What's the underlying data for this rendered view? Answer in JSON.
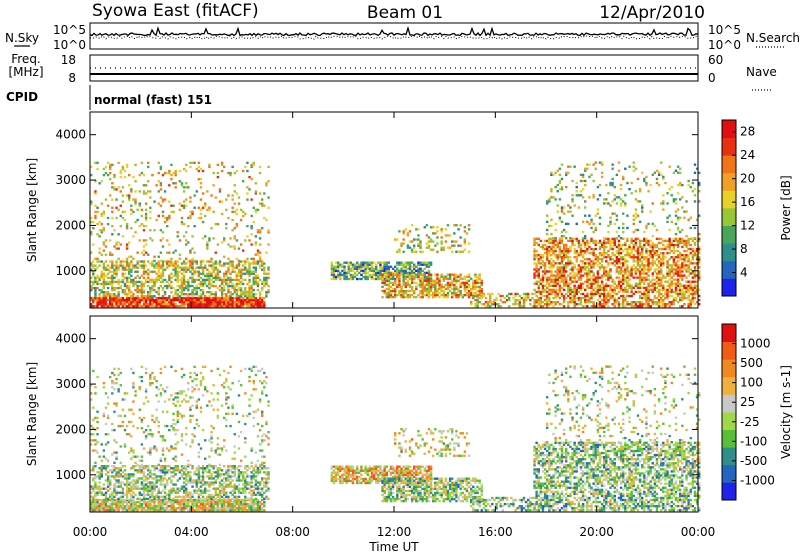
{
  "header": {
    "left": "Syowa East (fitACF)",
    "center": "Beam 01",
    "right": "12/Apr/2010"
  },
  "strips": {
    "nsky_label": "N.Sky",
    "nsearch_label": "N.Search",
    "noise_ticks": [
      "10^5",
      "10^0"
    ],
    "freq_label_1": "Freq.",
    "freq_label_2": "[MHz]",
    "freq_ticks": [
      "18",
      "8"
    ],
    "nave_label": "Nave",
    "nave_ticks": [
      "60",
      "0"
    ],
    "cpid_label": "CPID",
    "cpid_value": "normal (fast) 151"
  },
  "chart_data": [
    {
      "type": "heatmap",
      "panel": "power",
      "ylabel": "Slant Range [km]",
      "xlabel": "",
      "xlim": [
        "00:00",
        "24:00"
      ],
      "ylim": [
        180,
        4500
      ],
      "x_ticks": [
        "00:00",
        "04:00",
        "08:00",
        "12:00",
        "16:00",
        "20:00",
        "00:00"
      ],
      "y_ticks": [
        1000,
        2000,
        3000,
        4000
      ],
      "colorbar": {
        "label": "Power [dB]",
        "ticks": [
          "4",
          "8",
          "12",
          "16",
          "20",
          "24",
          "28"
        ],
        "range": [
          0,
          30
        ],
        "colors": [
          "#1f22e8",
          "#2266c0",
          "#2e8f8a",
          "#4aa55a",
          "#98c636",
          "#e8d22a",
          "#f0a024",
          "#f07418",
          "#e83010",
          "#e01010"
        ]
      },
      "regions": [
        {
          "t0": 0.0,
          "t1": 6.9,
          "r0": 200,
          "r1": 420,
          "level": 0.88,
          "density": 0.92
        },
        {
          "t0": 0.0,
          "t1": 7.0,
          "r0": 420,
          "r1": 1200,
          "level": 0.5,
          "density": 0.55
        },
        {
          "t0": 0.0,
          "t1": 7.0,
          "r0": 1200,
          "r1": 3400,
          "level": 0.55,
          "density": 0.12
        },
        {
          "t0": 9.5,
          "t1": 13.5,
          "r0": 800,
          "r1": 1200,
          "level": 0.35,
          "density": 0.75
        },
        {
          "t0": 11.5,
          "t1": 15.5,
          "r0": 400,
          "r1": 900,
          "level": 0.62,
          "density": 0.65
        },
        {
          "t0": 12.0,
          "t1": 15.0,
          "r0": 1400,
          "r1": 2000,
          "level": 0.5,
          "density": 0.22
        },
        {
          "t0": 15.0,
          "t1": 17.5,
          "r0": 200,
          "r1": 500,
          "level": 0.6,
          "density": 0.45
        },
        {
          "t0": 17.5,
          "t1": 24.0,
          "r0": 200,
          "r1": 1700,
          "level": 0.68,
          "density": 0.58
        },
        {
          "t0": 18.0,
          "t1": 24.0,
          "r0": 1700,
          "r1": 3400,
          "level": 0.45,
          "density": 0.12
        }
      ]
    },
    {
      "type": "heatmap",
      "panel": "velocity",
      "ylabel": "Slant Range [km]",
      "xlabel": "Time UT",
      "xlim": [
        "00:00",
        "24:00"
      ],
      "ylim": [
        180,
        4500
      ],
      "x_ticks": [
        "00:00",
        "04:00",
        "08:00",
        "12:00",
        "16:00",
        "20:00",
        "00:00"
      ],
      "y_ticks": [
        1000,
        2000,
        3000,
        4000
      ],
      "colorbar": {
        "label": "Velocity [m s-1]",
        "ticks": [
          "1000",
          "500",
          "100",
          "25",
          "-25",
          "-100",
          "-500",
          "-1000"
        ],
        "range": [
          -1000,
          1000
        ],
        "colors": [
          "#1f22e8",
          "#2266c0",
          "#2e8f8a",
          "#58c038",
          "#a0d84a",
          "#c8c8c8",
          "#f0b040",
          "#f08a20",
          "#f05c14",
          "#e01010"
        ]
      },
      "regions": [
        {
          "t0": 0.0,
          "t1": 6.9,
          "r0": 200,
          "r1": 450,
          "level": 0.55,
          "density": 0.9
        },
        {
          "t0": 0.0,
          "t1": 7.0,
          "r0": 450,
          "r1": 1200,
          "level": 0.45,
          "density": 0.55
        },
        {
          "t0": 0.0,
          "t1": 7.0,
          "r0": 1200,
          "r1": 3400,
          "level": 0.5,
          "density": 0.12
        },
        {
          "t0": 9.5,
          "t1": 13.5,
          "r0": 800,
          "r1": 1200,
          "level": 0.62,
          "density": 0.75
        },
        {
          "t0": 11.5,
          "t1": 15.5,
          "r0": 400,
          "r1": 900,
          "level": 0.45,
          "density": 0.65
        },
        {
          "t0": 12.0,
          "t1": 15.0,
          "r0": 1400,
          "r1": 2000,
          "level": 0.55,
          "density": 0.22
        },
        {
          "t0": 15.0,
          "t1": 17.5,
          "r0": 200,
          "r1": 500,
          "level": 0.4,
          "density": 0.45
        },
        {
          "t0": 17.5,
          "t1": 24.0,
          "r0": 200,
          "r1": 1700,
          "level": 0.42,
          "density": 0.58
        },
        {
          "t0": 18.0,
          "t1": 24.0,
          "r0": 1700,
          "r1": 3400,
          "level": 0.5,
          "density": 0.12
        }
      ]
    }
  ]
}
